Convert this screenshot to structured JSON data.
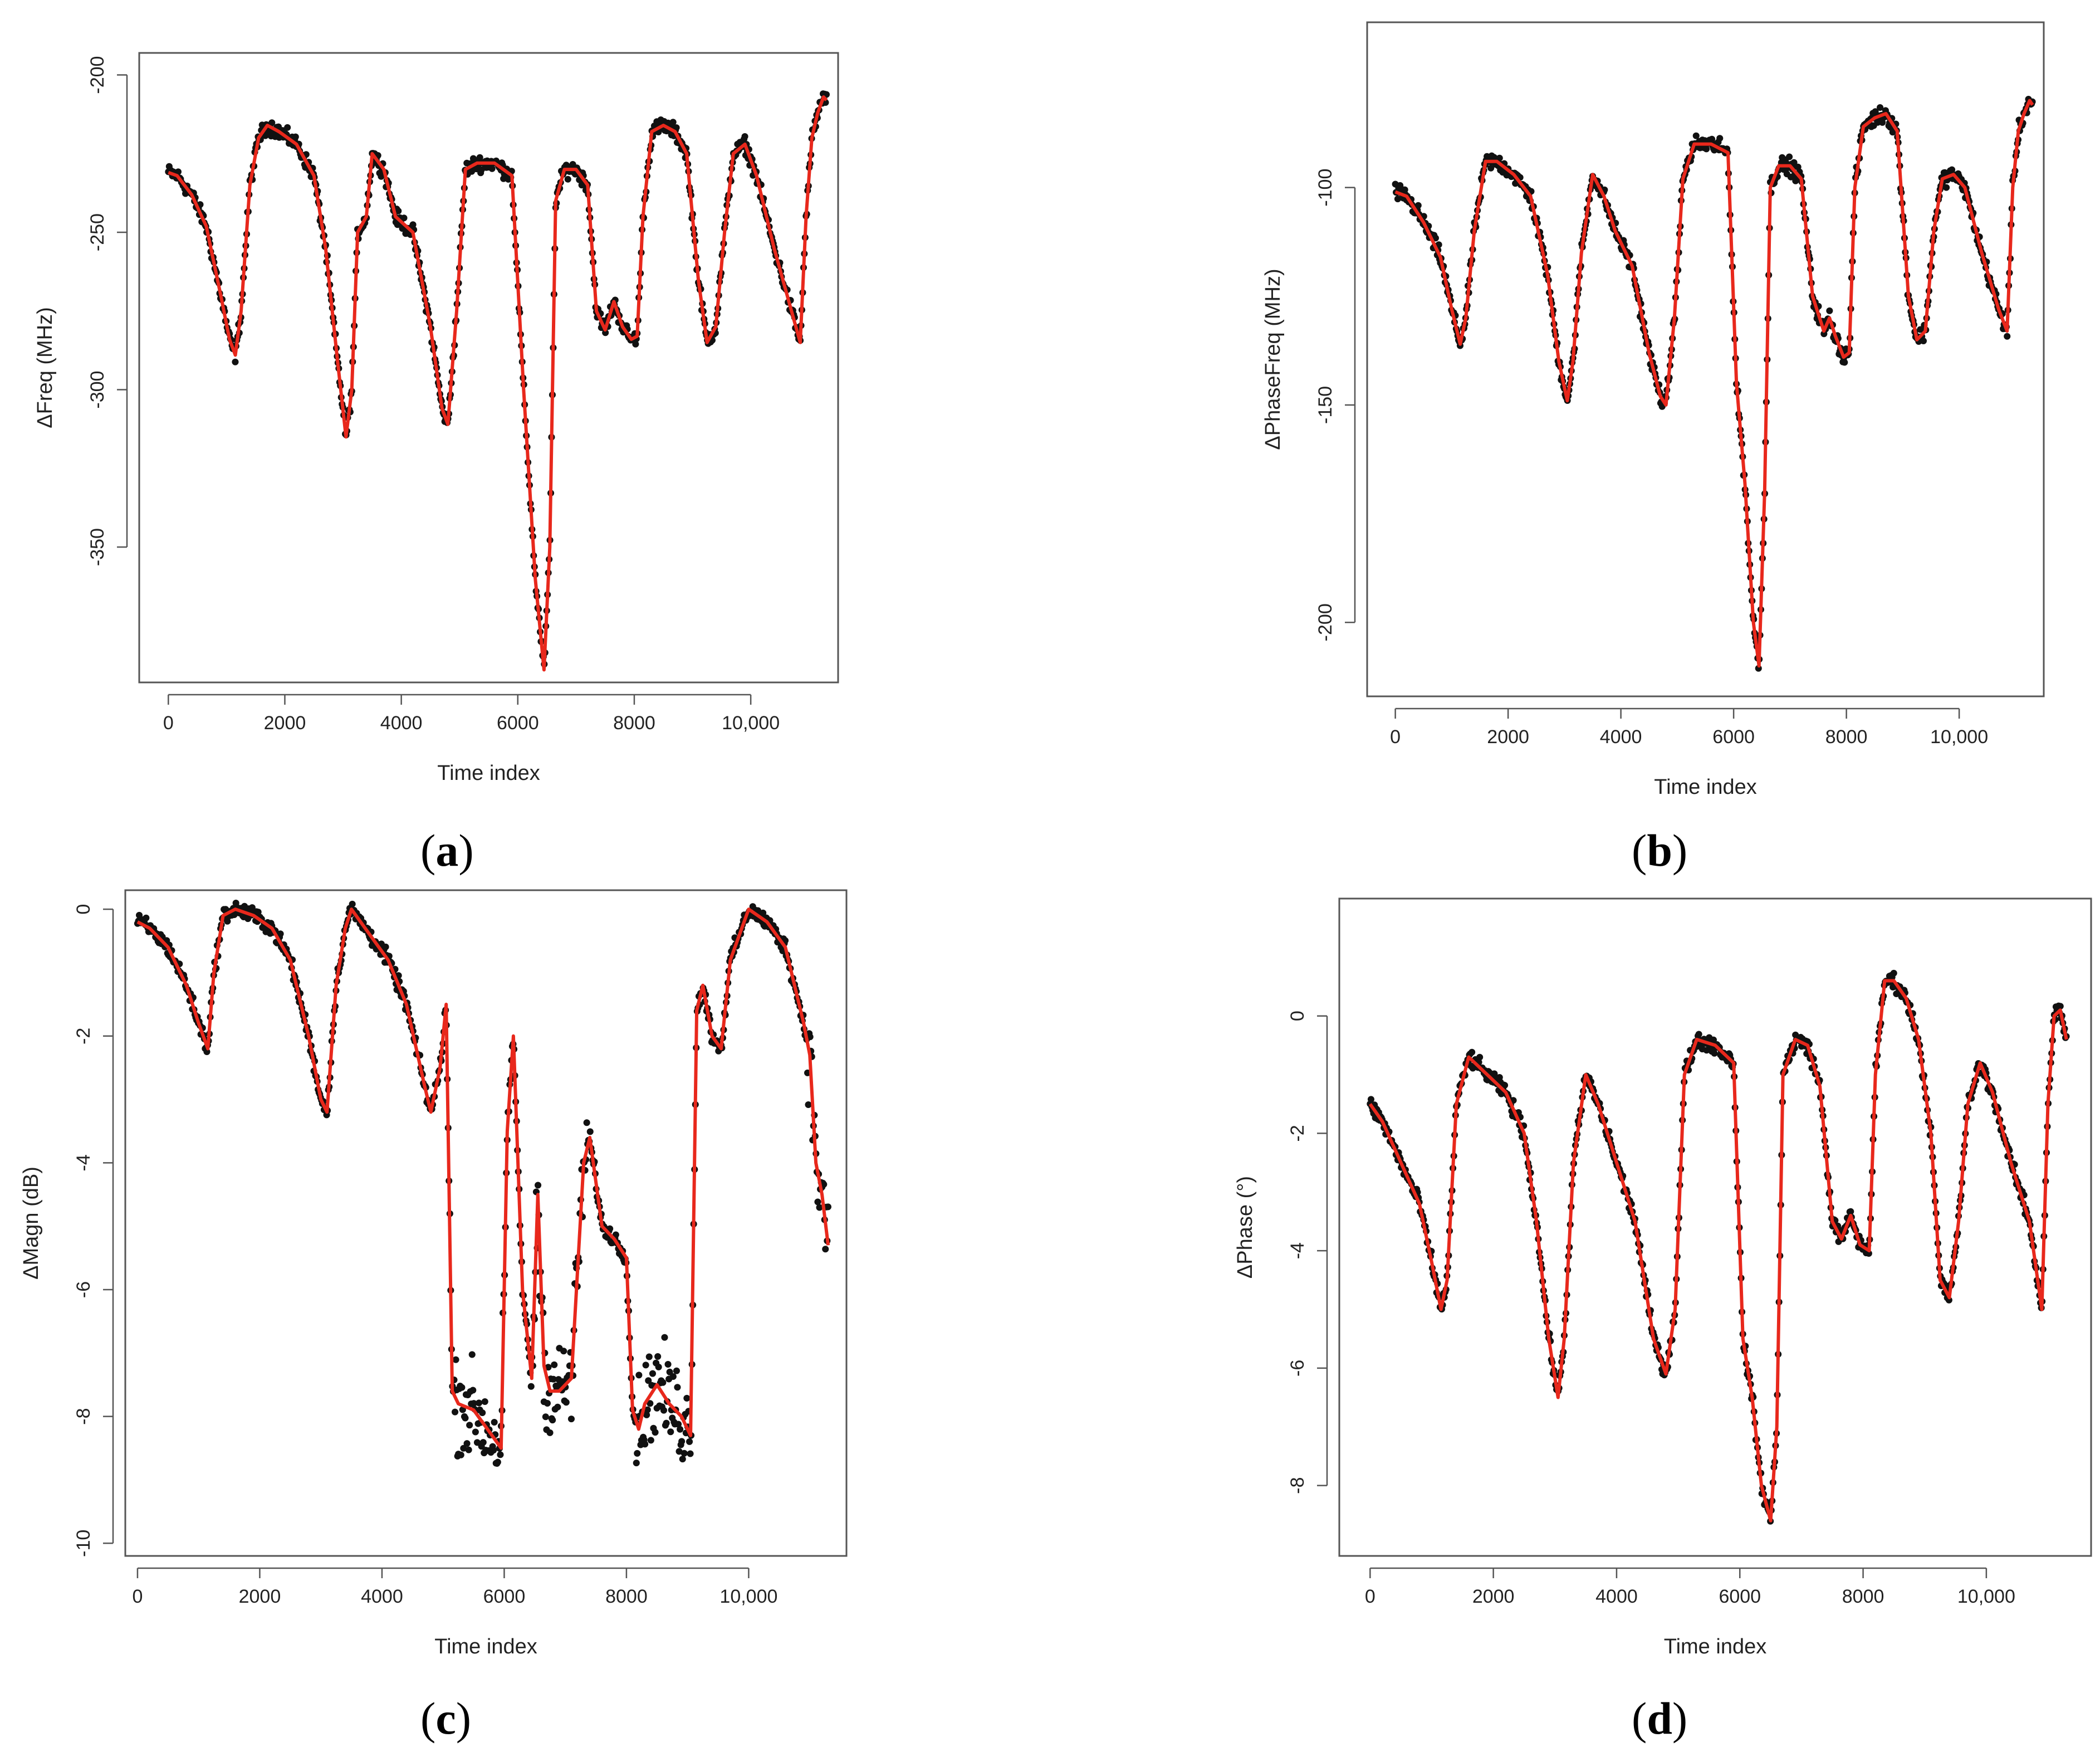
{
  "colors": {
    "points": "#111111",
    "fit": "#e8281c",
    "frame": "#555555"
  },
  "chart_data": [
    {
      "id": "a",
      "type": "line",
      "panel_label": "a",
      "xlabel": "Time index",
      "ylabel": "ΔFreq (MHz)",
      "xlim": [
        -500,
        11500
      ],
      "ylim": [
        -393,
        -193
      ],
      "xticks": [
        0,
        2000,
        4000,
        6000,
        8000,
        10000
      ],
      "xtick_labels": [
        "0",
        "2000",
        "4000",
        "6000",
        "8000",
        "10,000"
      ],
      "yticks": [
        -200,
        -250,
        -300,
        -350
      ],
      "ytick_labels": [
        "-200",
        "-250",
        "-300",
        "-350"
      ],
      "series": [
        {
          "name": "fit",
          "x": [
            0,
            150,
            400,
            650,
            900,
            1050,
            1150,
            1250,
            1400,
            1550,
            1700,
            1900,
            2200,
            2500,
            2700,
            2900,
            3050,
            3150,
            3250,
            3400,
            3500,
            3700,
            3900,
            4200,
            4500,
            4700,
            4800,
            4950,
            5100,
            5300,
            5600,
            5900,
            6100,
            6300,
            6450,
            6550,
            6650,
            6800,
            7000,
            7200,
            7350,
            7500,
            7650,
            7800,
            7950,
            8050,
            8150,
            8300,
            8500,
            8700,
            8900,
            9100,
            9250,
            9400,
            9550,
            9700,
            9900,
            10100,
            10400,
            10700,
            10850,
            10950,
            11050,
            11150,
            11250,
            11300
          ],
          "values": [
            -231,
            -232,
            -238,
            -248,
            -270,
            -284,
            -289,
            -275,
            -235,
            -220,
            -216,
            -218,
            -222,
            -232,
            -255,
            -290,
            -315,
            -300,
            -250,
            -245,
            -225,
            -230,
            -245,
            -250,
            -280,
            -306,
            -311,
            -275,
            -230,
            -228,
            -228,
            -232,
            -300,
            -360,
            -389,
            -350,
            -240,
            -230,
            -230,
            -235,
            -275,
            -281,
            -272,
            -280,
            -284,
            -283,
            -245,
            -218,
            -216,
            -218,
            -225,
            -265,
            -285,
            -280,
            -250,
            -225,
            -222,
            -232,
            -255,
            -275,
            -285,
            -245,
            -220,
            -212,
            -207,
            -208
          ]
        }
      ]
    },
    {
      "id": "b",
      "type": "line",
      "panel_label": "b",
      "xlabel": "Time index",
      "ylabel": "ΔPhaseFreq (MHz)",
      "xlim": [
        -500,
        11500
      ],
      "ylim": [
        -217,
        -62
      ],
      "xticks": [
        0,
        2000,
        4000,
        6000,
        8000,
        10000
      ],
      "xtick_labels": [
        "0",
        "2000",
        "4000",
        "6000",
        "8000",
        "10,000"
      ],
      "yticks": [
        -100,
        -150,
        -200
      ],
      "ytick_labels": [
        "-100",
        "-150",
        "-200"
      ],
      "series": [
        {
          "name": "fit",
          "x": [
            0,
            200,
            500,
            800,
            1000,
            1150,
            1250,
            1400,
            1600,
            1800,
            2100,
            2400,
            2700,
            2900,
            3050,
            3150,
            3300,
            3500,
            3700,
            3900,
            4200,
            4500,
            4700,
            4800,
            4950,
            5100,
            5300,
            5600,
            5900,
            6050,
            6200,
            6350,
            6450,
            6550,
            6650,
            6800,
            7000,
            7200,
            7400,
            7600,
            7700,
            7800,
            7950,
            8050,
            8150,
            8300,
            8500,
            8700,
            8900,
            9100,
            9250,
            9400,
            9550,
            9700,
            9900,
            10100,
            10400,
            10700,
            10850,
            10950,
            11050,
            11150,
            11250,
            11300
          ],
          "values": [
            -101,
            -102,
            -108,
            -116,
            -128,
            -136,
            -130,
            -110,
            -94,
            -94,
            -97,
            -102,
            -120,
            -140,
            -149,
            -140,
            -115,
            -97,
            -102,
            -110,
            -118,
            -138,
            -148,
            -150,
            -130,
            -98,
            -90,
            -90,
            -92,
            -145,
            -168,
            -200,
            -210,
            -170,
            -100,
            -95,
            -95,
            -98,
            -125,
            -133,
            -130,
            -134,
            -139,
            -138,
            -100,
            -86,
            -84,
            -83,
            -87,
            -125,
            -135,
            -133,
            -110,
            -98,
            -97,
            -100,
            -115,
            -128,
            -133,
            -100,
            -87,
            -83,
            -80,
            -81
          ]
        }
      ]
    },
    {
      "id": "c",
      "type": "line",
      "panel_label": "c",
      "xlabel": "Time index",
      "ylabel": "ΔMagn (dB)",
      "xlim": [
        -200,
        11600
      ],
      "ylim": [
        -10.2,
        0.3
      ],
      "xticks": [
        0,
        2000,
        4000,
        6000,
        8000,
        10000
      ],
      "xtick_labels": [
        "0",
        "2000",
        "4000",
        "6000",
        "8000",
        "10,000"
      ],
      "yticks": [
        0,
        -2,
        -4,
        -6,
        -8,
        -10
      ],
      "ytick_labels": [
        "0",
        "-2",
        "-4",
        "-6",
        "-8",
        "-10"
      ],
      "series": [
        {
          "name": "fit",
          "x": [
            0,
            200,
            500,
            800,
            1000,
            1150,
            1250,
            1400,
            1600,
            1900,
            2200,
            2500,
            2800,
            3000,
            3100,
            3250,
            3400,
            3500,
            3800,
            4100,
            4400,
            4700,
            4800,
            4950,
            5050,
            5150,
            5250,
            5500,
            5800,
            5950,
            6050,
            6150,
            6300,
            6450,
            6550,
            6650,
            6750,
            6900,
            7100,
            7300,
            7400,
            7600,
            7800,
            8000,
            8100,
            8200,
            8300,
            8500,
            8700,
            8900,
            9050,
            9150,
            9250,
            9400,
            9550,
            9700,
            10000,
            10300,
            10600,
            10900,
            11000,
            11100,
            11200,
            11300
          ],
          "values": [
            -0.2,
            -0.3,
            -0.6,
            -1.2,
            -1.8,
            -2.2,
            -1.0,
            -0.1,
            0.0,
            -0.1,
            -0.3,
            -0.8,
            -2.0,
            -3.0,
            -3.2,
            -1.2,
            -0.3,
            0.0,
            -0.4,
            -0.8,
            -1.5,
            -2.8,
            -3.2,
            -2.5,
            -1.5,
            -7.6,
            -7.8,
            -7.9,
            -8.3,
            -8.5,
            -3.5,
            -2.0,
            -6.0,
            -7.4,
            -4.5,
            -7.2,
            -7.6,
            -7.6,
            -7.4,
            -4.0,
            -3.6,
            -5.0,
            -5.2,
            -5.5,
            -7.9,
            -8.2,
            -7.8,
            -7.5,
            -7.8,
            -8.0,
            -8.3,
            -1.6,
            -1.2,
            -2.0,
            -2.2,
            -0.8,
            0.0,
            -0.2,
            -0.6,
            -1.8,
            -2.3,
            -4.0,
            -4.5,
            -5.3
          ]
        }
      ]
    },
    {
      "id": "d",
      "type": "line",
      "panel_label": "d",
      "xlabel": "Time index",
      "ylabel": "ΔPhase (°)",
      "xlim": [
        -500,
        11700
      ],
      "ylim": [
        -9.2,
        2.0
      ],
      "xticks": [
        0,
        2000,
        4000,
        6000,
        8000,
        10000
      ],
      "xtick_labels": [
        "0",
        "2000",
        "4000",
        "6000",
        "8000",
        "10,000"
      ],
      "yticks": [
        0,
        -2,
        -4,
        -6,
        -8
      ],
      "ytick_labels": [
        "0",
        "-2",
        "-4",
        "-6",
        "-8"
      ],
      "series": [
        {
          "name": "fit",
          "x": [
            0,
            200,
            500,
            800,
            1000,
            1150,
            1250,
            1400,
            1600,
            1900,
            2200,
            2500,
            2700,
            2900,
            3050,
            3150,
            3300,
            3500,
            3700,
            4000,
            4300,
            4600,
            4800,
            4950,
            5100,
            5300,
            5600,
            5900,
            6050,
            6200,
            6350,
            6500,
            6600,
            6700,
            6900,
            7100,
            7300,
            7500,
            7650,
            7800,
            7950,
            8100,
            8200,
            8350,
            8500,
            8700,
            8900,
            9100,
            9250,
            9400,
            9550,
            9700,
            9900,
            10100,
            10400,
            10700,
            10900,
            11000,
            11100,
            11200,
            11300
          ],
          "values": [
            -1.5,
            -1.8,
            -2.5,
            -3.2,
            -4.2,
            -5.0,
            -4.5,
            -1.5,
            -0.7,
            -1.0,
            -1.3,
            -2.0,
            -3.5,
            -5.5,
            -6.5,
            -5.5,
            -2.5,
            -1.0,
            -1.5,
            -2.5,
            -3.5,
            -5.5,
            -6.1,
            -5.0,
            -1.0,
            -0.4,
            -0.5,
            -0.8,
            -5.5,
            -6.5,
            -8.0,
            -8.6,
            -7.0,
            -1.0,
            -0.4,
            -0.5,
            -1.2,
            -3.5,
            -3.8,
            -3.4,
            -3.9,
            -4.0,
            -1.0,
            0.6,
            0.6,
            0.3,
            -0.4,
            -2.0,
            -4.5,
            -4.8,
            -3.5,
            -1.5,
            -0.8,
            -1.3,
            -2.5,
            -3.5,
            -5.0,
            -1.5,
            0.0,
            0.1,
            -0.4
          ]
        }
      ]
    }
  ]
}
